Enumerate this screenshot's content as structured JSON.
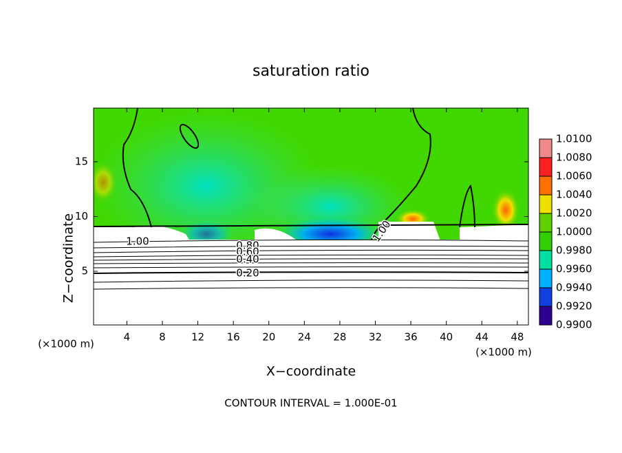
{
  "chart_data": {
    "type": "contour",
    "title": "saturation ratio",
    "x_label": "X−coordinate",
    "y_label": "Z−coordinate",
    "x_unit": "(×1000 m)",
    "x_unit_right": "(×1000 m)",
    "footer": "CONTOUR INTERVAL = 1.000E-01",
    "xlim": [
      0.25,
      49.25
    ],
    "xticks": [
      4,
      8,
      12,
      16,
      20,
      24,
      28,
      32,
      36,
      40,
      44,
      48
    ],
    "ylim": [
      0.1,
      19.9
    ],
    "yticks": [
      5,
      10,
      15
    ],
    "contour_labels": [
      "1.00",
      "0.80",
      "0.60",
      "0.40",
      "0.20",
      "1.00"
    ],
    "colorbar": {
      "lim": [
        0.99,
        1.01
      ],
      "ticks": [
        {
          "value": 1.01,
          "label": "1.0100"
        },
        {
          "value": 1.008,
          "label": "1.0080"
        },
        {
          "value": 1.006,
          "label": "1.0060"
        },
        {
          "value": 1.004,
          "label": "1.0040"
        },
        {
          "value": 1.002,
          "label": "1.0020"
        },
        {
          "value": 1.0,
          "label": "1.0000"
        },
        {
          "value": 0.998,
          "label": "0.9980"
        },
        {
          "value": 0.996,
          "label": "0.9960"
        },
        {
          "value": 0.994,
          "label": "0.9940"
        },
        {
          "value": 0.992,
          "label": "0.9920"
        },
        {
          "value": 0.99,
          "label": "0.9900"
        }
      ],
      "colors": [
        "#f08a8a",
        "#ff2020",
        "#ff7000",
        "#f0e000",
        "#60d000",
        "#30d000",
        "#00e0a0",
        "#00b0ff",
        "#1040e0",
        "#300090"
      ]
    }
  }
}
